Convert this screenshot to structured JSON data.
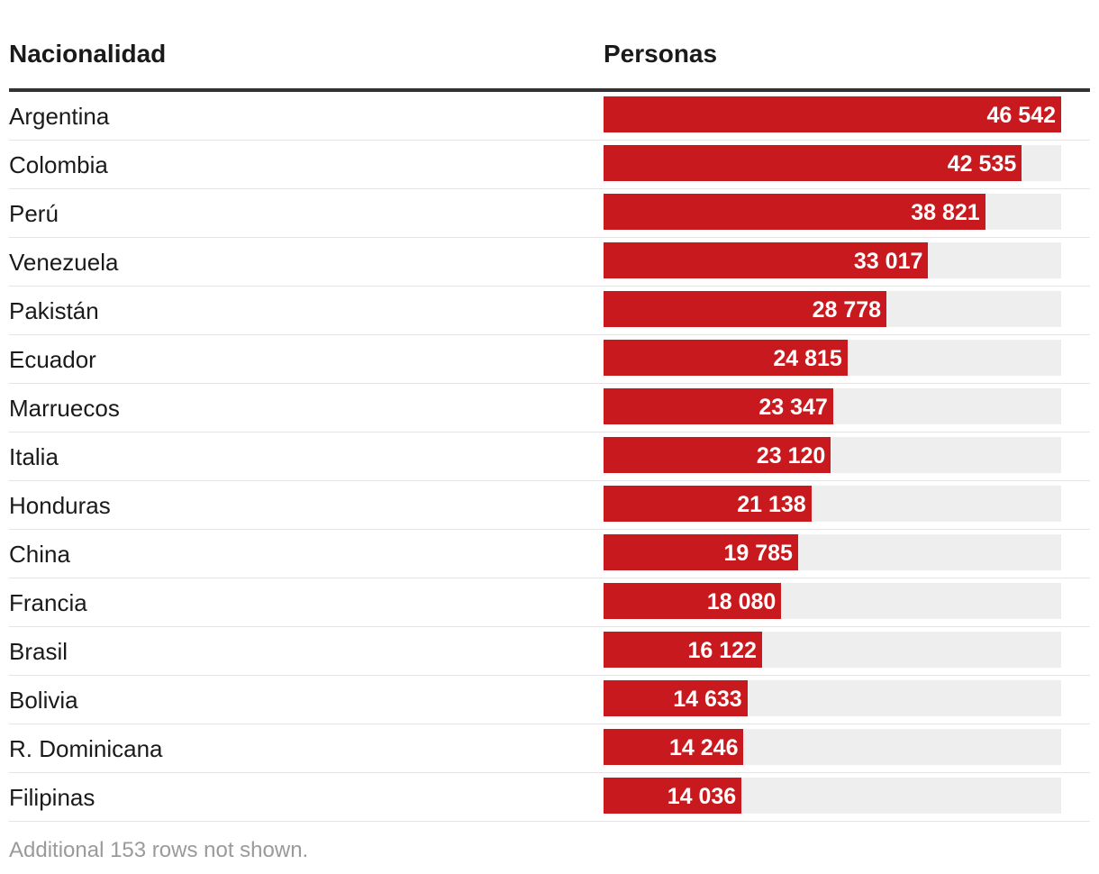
{
  "table": {
    "header_name": "Nacionalidad",
    "header_value": "Personas"
  },
  "colors": {
    "bar": "#c8191e",
    "track": "#eeeeee"
  },
  "chart_data": {
    "type": "bar",
    "orientation": "horizontal",
    "categories": [
      "Argentina",
      "Colombia",
      "Perú",
      "Venezuela",
      "Pakistán",
      "Ecuador",
      "Marruecos",
      "Italia",
      "Honduras",
      "China",
      "Francia",
      "Brasil",
      "Bolivia",
      "R. Dominicana",
      "Filipinas"
    ],
    "values": [
      46542,
      42535,
      38821,
      33017,
      28778,
      24815,
      23347,
      23120,
      21138,
      19785,
      18080,
      16122,
      14633,
      14246,
      14036
    ],
    "value_labels": [
      "46 542",
      "42 535",
      "38 821",
      "33 017",
      "28 778",
      "24 815",
      "23 347",
      "23 120",
      "21 138",
      "19 785",
      "18 080",
      "16 122",
      "14 633",
      "14 246",
      "14 036"
    ],
    "xlim": [
      0,
      46542
    ]
  },
  "footnote": "Additional 153 rows not shown."
}
